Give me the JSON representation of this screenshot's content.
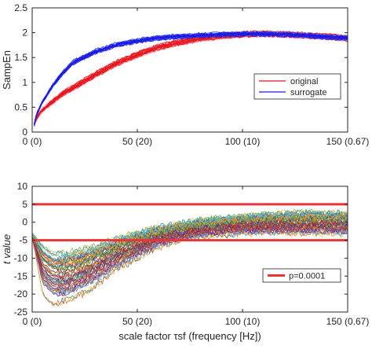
{
  "chart_data": [
    {
      "type": "line",
      "ylabel": "SampEn",
      "xlabel": "",
      "xlim": [
        0,
        150
      ],
      "ylim": [
        0,
        2.5
      ],
      "xticks": [
        0,
        50,
        100,
        150
      ],
      "xtick_labels": [
        "0 (0)",
        "50 (20)",
        "100 (10)",
        "150 (0.67)"
      ],
      "yticks": [
        0,
        0.5,
        1,
        1.5,
        2,
        2.5
      ],
      "ytick_labels": [
        "0",
        "0.5",
        "1",
        "1.5",
        "2",
        "2.5"
      ],
      "grid": false,
      "legend_position": "right",
      "x": [
        1,
        2,
        5,
        10,
        15,
        20,
        30,
        40,
        50,
        60,
        70,
        80,
        90,
        100,
        110,
        120,
        130,
        140,
        150
      ],
      "series": [
        {
          "name": "original",
          "color": "#e8141c",
          "band_color": "#f4a9b3",
          "values": [
            0.15,
            0.28,
            0.45,
            0.62,
            0.78,
            0.9,
            1.15,
            1.38,
            1.55,
            1.7,
            1.8,
            1.88,
            1.93,
            1.96,
            1.97,
            1.96,
            1.94,
            1.92,
            1.88
          ],
          "spread": 0.07
        },
        {
          "name": "surrogate",
          "color": "#1a1ae6",
          "band_color": "#8fa8f0",
          "values": [
            0.15,
            0.35,
            0.62,
            0.95,
            1.22,
            1.42,
            1.62,
            1.76,
            1.84,
            1.9,
            1.93,
            1.95,
            1.97,
            1.98,
            1.98,
            1.97,
            1.95,
            1.92,
            1.9
          ],
          "spread": 0.05
        }
      ]
    },
    {
      "type": "line",
      "ylabel": "t value",
      "xlabel": "scale factor τsf (frequency [Hz])",
      "xlim": [
        0,
        150
      ],
      "ylim": [
        -25,
        10
      ],
      "xticks": [
        0,
        50,
        100,
        150
      ],
      "xtick_labels": [
        "0 (0)",
        "50 (20)",
        "100 (10)",
        "150 (0.67)"
      ],
      "yticks": [
        -25,
        -20,
        -15,
        -10,
        -5,
        0,
        5,
        10
      ],
      "ytick_labels": [
        "-25",
        "-20",
        "-15",
        "-10",
        "-5",
        "0",
        "5",
        "10"
      ],
      "grid": false,
      "legend_position": "right",
      "threshold": {
        "name": "p=0.0001",
        "color": "#e8353a",
        "values": [
          5,
          -5
        ]
      },
      "x": [
        0,
        5,
        10,
        15,
        20,
        30,
        40,
        50,
        60,
        70,
        80,
        90,
        100,
        110,
        120,
        130,
        140,
        150
      ],
      "envelope": {
        "upper": [
          -3,
          -6,
          -8,
          -8,
          -7.5,
          -6,
          -4,
          -2.5,
          -1,
          0,
          1,
          1.5,
          2,
          2.5,
          3,
          3,
          3,
          3
        ],
        "lower": [
          -4,
          -17,
          -20,
          -20,
          -19,
          -16,
          -12,
          -9,
          -6,
          -4.5,
          -3.5,
          -3,
          -2.5,
          -2.5,
          -2.5,
          -2.5,
          -2.5,
          -2.5
        ],
        "minimum": [
          -4,
          -20,
          -23,
          -22,
          -21,
          -18,
          -13,
          -10,
          -7,
          -5,
          -4,
          -3.5,
          -3,
          -3,
          -3,
          -3,
          -3,
          -3
        ]
      },
      "n_curves": 60
    }
  ]
}
